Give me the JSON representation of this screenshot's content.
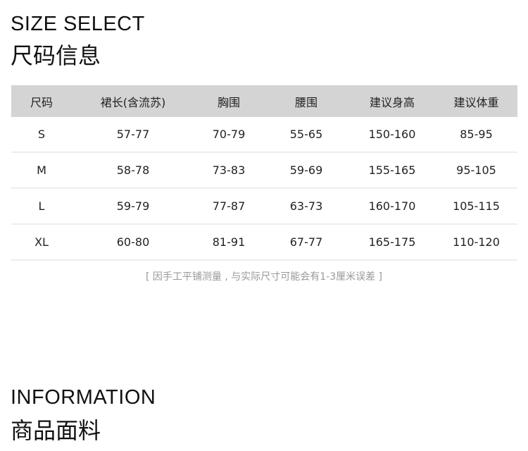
{
  "size_section": {
    "title_en": "SIZE SELECT",
    "title_cn": "尺码信息"
  },
  "table": {
    "headers": [
      "尺码",
      "裙长(含流苏)",
      "胸围",
      "腰围",
      "建议身高",
      "建议体重"
    ],
    "rows": [
      [
        "S",
        "57-77",
        "70-79",
        "55-65",
        "150-160",
        "85-95"
      ],
      [
        "M",
        "58-78",
        "73-83",
        "59-69",
        "155-165",
        "95-105"
      ],
      [
        "L",
        "59-79",
        "77-87",
        "63-73",
        "160-170",
        "105-115"
      ],
      [
        "XL",
        "60-80",
        "81-91",
        "67-77",
        "165-175",
        "110-120"
      ]
    ]
  },
  "note": "[ 因手工平铺测量 , 与实际尺寸可能会有1-3厘米误差 ]",
  "info_section": {
    "title_en": "INFORMATION",
    "title_cn": "商品面料"
  }
}
